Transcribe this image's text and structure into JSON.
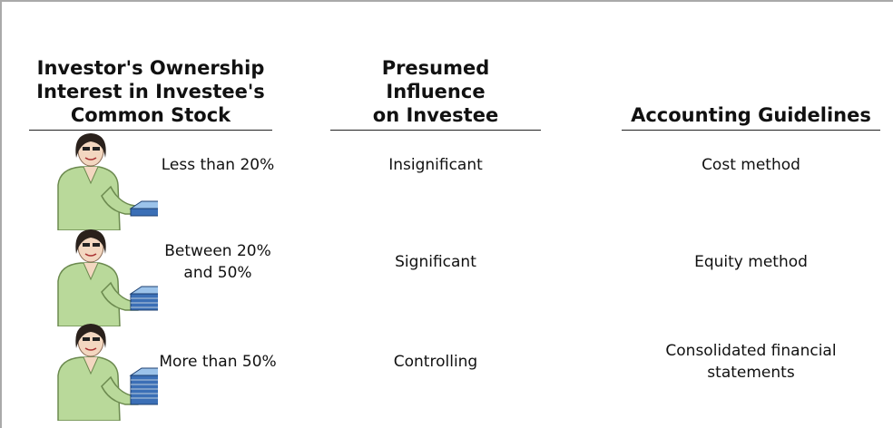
{
  "header": {
    "columns": [
      {
        "lines": [
          "Investor's Ownership",
          "Interest in Investee's",
          "Common Stock"
        ]
      },
      {
        "lines": [
          "Presumed Influence",
          "on Investee"
        ]
      },
      {
        "lines": [
          "Accounting Guidelines"
        ]
      }
    ]
  },
  "rows": [
    [
      {
        "lines": [
          "Less than 20%"
        ]
      },
      {
        "lines": [
          "Insignificant"
        ]
      },
      {
        "lines": [
          "Cost method"
        ]
      }
    ],
    [
      {
        "lines": [
          "Between 20%",
          "and 50%"
        ]
      },
      {
        "lines": [
          "Significant"
        ]
      },
      {
        "lines": [
          "Equity method"
        ]
      }
    ],
    [
      {
        "lines": [
          "More than 50%"
        ]
      },
      {
        "lines": [
          "Controlling"
        ]
      },
      {
        "lines": [
          "Consolidated financial",
          "statements"
        ]
      }
    ]
  ]
}
